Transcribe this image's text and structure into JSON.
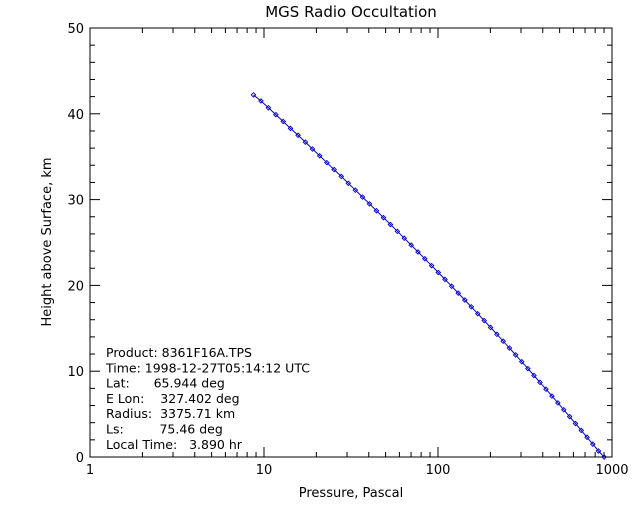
{
  "chart_data": {
    "type": "line",
    "title": "MGS Radio Occultation",
    "xlabel": "Pressure, Pascal",
    "ylabel": "Height above Surface, km",
    "x_scale": "log",
    "xlim": [
      1,
      1000
    ],
    "ylim": [
      0,
      50
    ],
    "x_ticks": [
      1,
      10,
      100,
      1000
    ],
    "x_tick_labels": [
      "1",
      "10",
      "100",
      "1000"
    ],
    "y_ticks": [
      0,
      10,
      20,
      30,
      40,
      50
    ],
    "y_tick_labels": [
      "0",
      "10",
      "20",
      "30",
      "40",
      "50"
    ],
    "grid": false,
    "series": [
      {
        "color": "#0000cc",
        "marker": "diamond",
        "x": [
          8.7,
          9.6,
          10.6,
          11.7,
          12.9,
          14.2,
          15.7,
          17.3,
          19.0,
          20.9,
          23.0,
          25.3,
          27.8,
          30.5,
          33.5,
          36.8,
          40.4,
          44.3,
          48.6,
          53.3,
          58.4,
          64.0,
          70.1,
          76.7,
          84.0,
          91.9,
          100.4,
          109.7,
          119.8,
          130.8,
          142.6,
          155.4,
          169.3,
          184.3,
          200.5,
          218.0,
          236.9,
          257.3,
          279.3,
          303.0,
          328.5,
          356.0,
          385.6,
          417.5,
          451.8,
          488.7,
          528.3,
          570.9,
          616.7,
          665.8,
          718.6,
          775.2,
          836.0,
          901.0
        ],
        "y": [
          42.2,
          41.5,
          40.7,
          39.9,
          39.1,
          38.3,
          37.5,
          36.7,
          35.9,
          35.1,
          34.3,
          33.5,
          32.7,
          31.9,
          31.1,
          30.3,
          29.5,
          28.7,
          27.9,
          27.1,
          26.3,
          25.5,
          24.7,
          23.9,
          23.1,
          22.3,
          21.5,
          20.7,
          19.9,
          19.1,
          18.3,
          17.5,
          16.7,
          15.9,
          15.1,
          14.3,
          13.5,
          12.7,
          11.9,
          11.1,
          10.3,
          9.5,
          8.7,
          7.9,
          7.1,
          6.3,
          5.5,
          4.7,
          3.9,
          3.1,
          2.3,
          1.5,
          0.7,
          0.0
        ]
      }
    ],
    "annotations": [
      "Product: 8361F16A.TPS",
      "Time: 1998-12-27T05:14:12 UTC",
      "Lat:      65.944 deg",
      "E Lon:    327.402 deg",
      "Radius:  3375.71 km",
      "Ls:         75.46 deg",
      "Local Time:   3.890 hr"
    ]
  }
}
